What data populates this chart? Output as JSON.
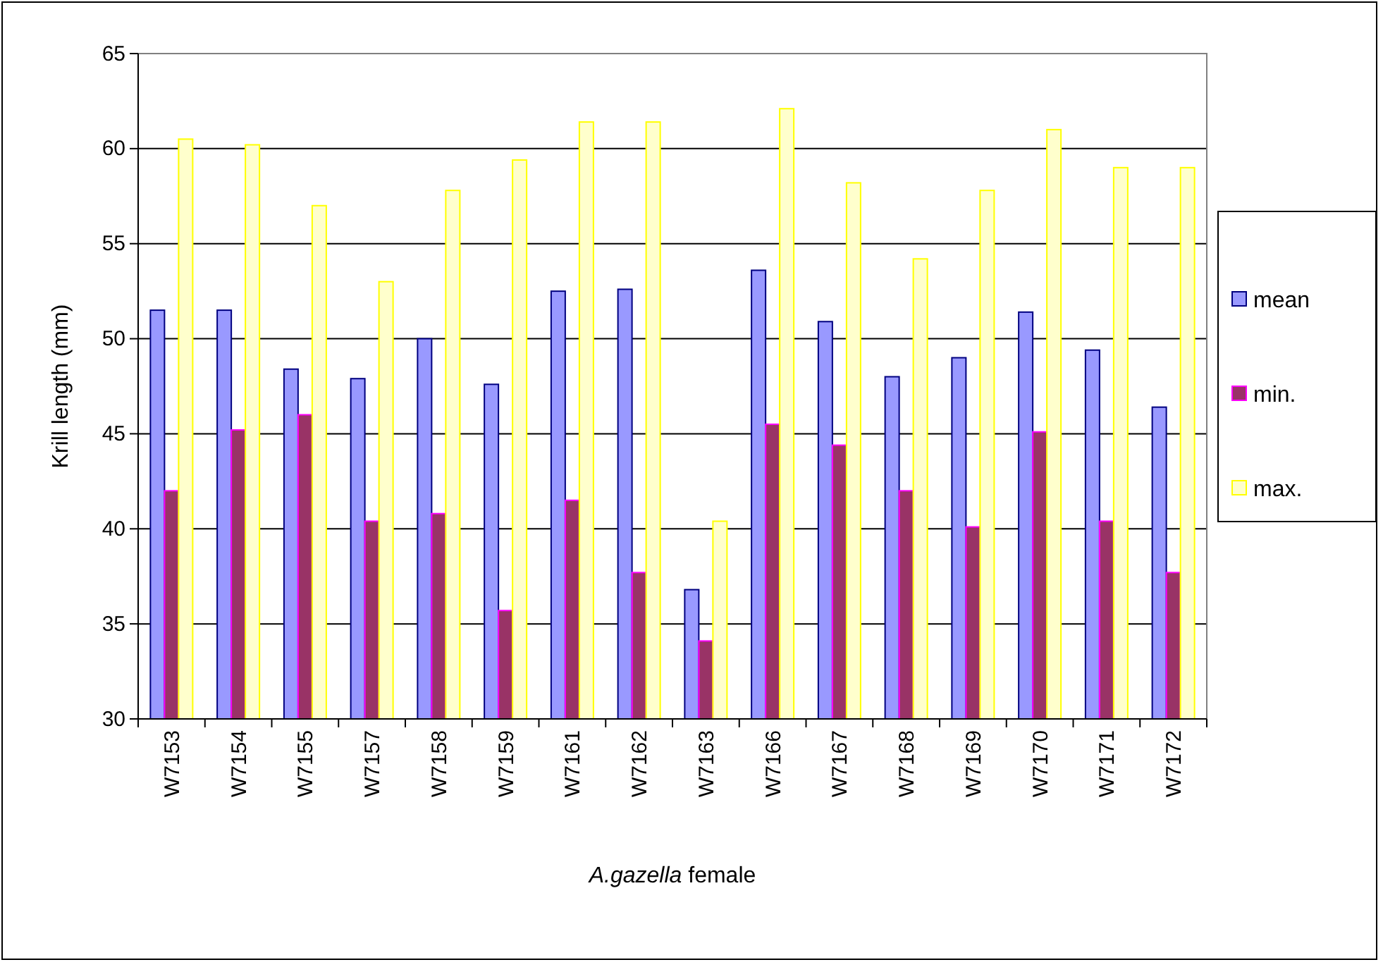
{
  "chart_data": {
    "type": "bar",
    "xlabel": "A.gazella female",
    "ylabel": "Krill length (mm)",
    "categories": [
      "W7153",
      "W7154",
      "W7155",
      "W7157",
      "W7158",
      "W7159",
      "W7161",
      "W7162",
      "W7163",
      "W7166",
      "W7167",
      "W7168",
      "W7169",
      "W7170",
      "W7171",
      "W7172"
    ],
    "series": [
      {
        "name": "mean",
        "color": "#9999ff",
        "values": [
          51.5,
          51.5,
          48.4,
          47.9,
          50,
          47.6,
          52.5,
          52.6,
          36.8,
          53.6,
          50.9,
          48,
          49,
          51.4,
          49.4,
          46.4
        ]
      },
      {
        "name": "min.",
        "color": "#993366",
        "values": [
          42,
          45.2,
          46,
          40.4,
          40.8,
          35.7,
          41.5,
          37.7,
          34.1,
          45.5,
          44.4,
          42,
          40.1,
          45.1,
          40.4,
          37.7
        ]
      },
      {
        "name": "max.",
        "color": "#ffffcc",
        "values": [
          60.5,
          60.2,
          57,
          53,
          57.8,
          59.4,
          61.4,
          61.4,
          40.4,
          62.1,
          58.2,
          54.2,
          57.8,
          61,
          59,
          59
        ]
      }
    ],
    "ylim": [
      30,
      65
    ],
    "yticks": [
      30,
      35,
      40,
      45,
      50,
      55,
      60,
      65
    ],
    "grid": "y",
    "legend": "right"
  }
}
